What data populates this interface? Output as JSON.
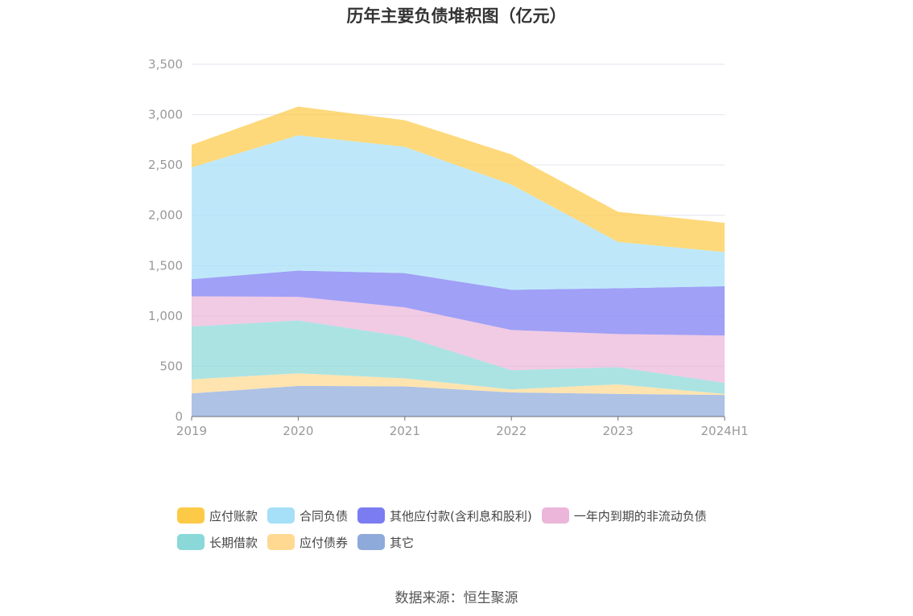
{
  "chart_data": {
    "type": "area",
    "stacked": true,
    "title": "历年主要负债堆积图（亿元）",
    "x": [
      "2019",
      "2020",
      "2021",
      "2022",
      "2023",
      "2024H1"
    ],
    "ylim": [
      0,
      3500
    ],
    "yticks": [
      "0",
      "500",
      "1,000",
      "1,500",
      "2,000",
      "2,500",
      "3,000",
      "3,500"
    ],
    "grid": true,
    "legend_position": "bottom",
    "series": [
      {
        "name": "其它",
        "color": "#8eaadb",
        "values": [
          230,
          305,
          300,
          240,
          225,
          215
        ]
      },
      {
        "name": "应付债券",
        "color": "#ffd992",
        "values": [
          140,
          125,
          80,
          30,
          95,
          10
        ]
      },
      {
        "name": "长期借款",
        "color": "#8ad8d8",
        "values": [
          525,
          525,
          415,
          190,
          170,
          110
        ]
      },
      {
        "name": "一年内到期的非流动负债",
        "color": "#ebb6d9",
        "values": [
          300,
          235,
          290,
          400,
          330,
          470
        ]
      },
      {
        "name": "其他应付款(含利息和股利)",
        "color": "#7b7cf2",
        "values": [
          170,
          260,
          340,
          400,
          455,
          490
        ]
      },
      {
        "name": "合同负债",
        "color": "#a5dff8",
        "values": [
          1110,
          1345,
          1255,
          1045,
          460,
          340
        ]
      },
      {
        "name": "应付账款",
        "color": "#fdca48",
        "values": [
          225,
          285,
          265,
          300,
          300,
          290
        ]
      }
    ],
    "legend_order": [
      "应付账款",
      "合同负债",
      "其他应付款(含利息和股利)",
      "一年内到期的非流动负债",
      "长期借款",
      "应付债券",
      "其它"
    ]
  },
  "footer": {
    "source": "数据来源：恒生聚源"
  }
}
